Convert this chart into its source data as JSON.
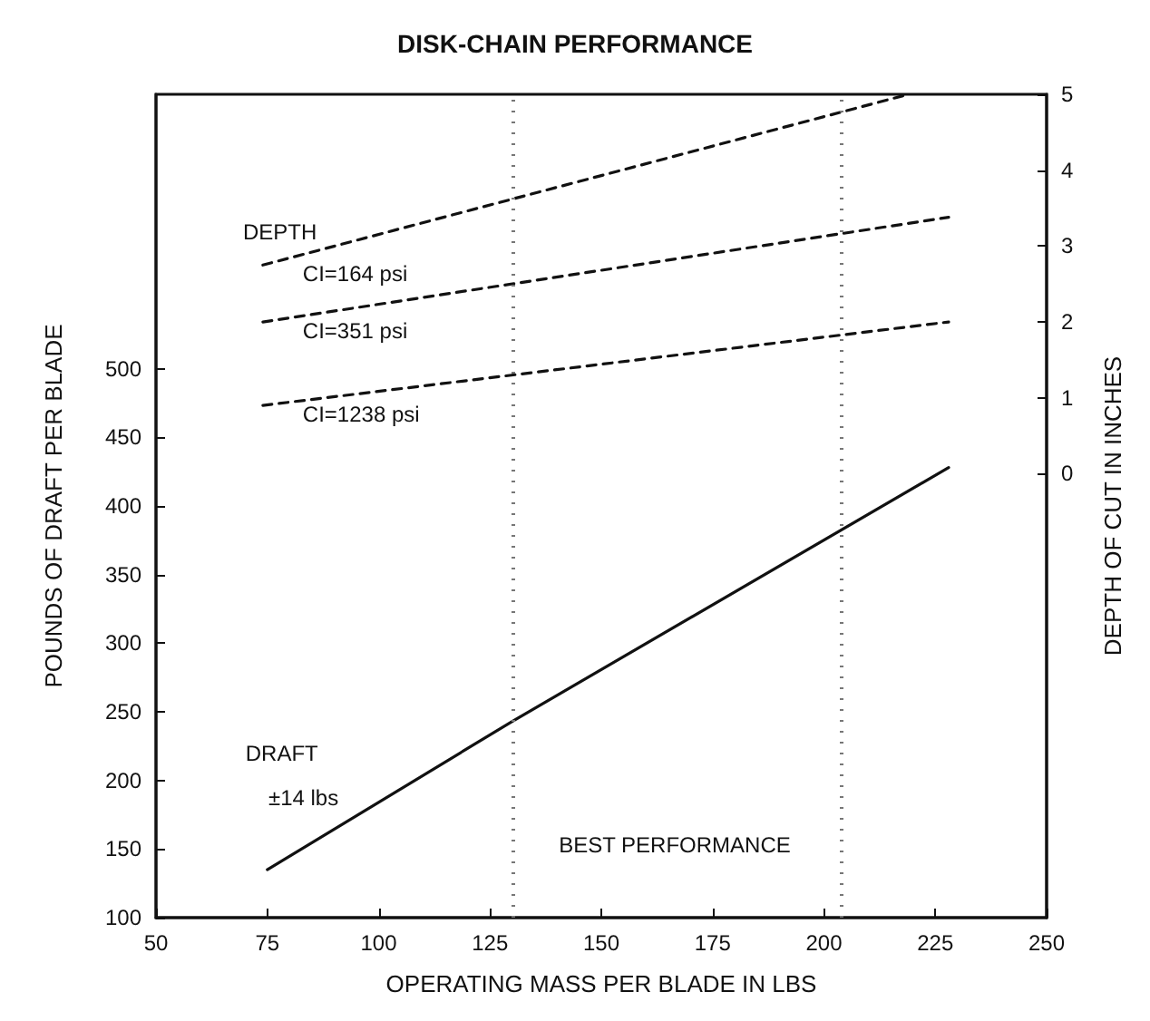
{
  "chart_data": {
    "type": "line",
    "title": "DISK-CHAIN PERFORMANCE",
    "xlabel": "OPERATING MASS PER BLADE IN LBS",
    "ylabel": "POUNDS OF DRAFT PER BLADE",
    "y2label": "DEPTH OF CUT IN INCHES",
    "xlim": [
      50,
      250
    ],
    "xticks": [
      50,
      75,
      100,
      125,
      150,
      175,
      200,
      225,
      250
    ],
    "ylim": [
      100,
      700
    ],
    "yticks": [
      100,
      150,
      200,
      250,
      300,
      350,
      400,
      450,
      500
    ],
    "y2lim": [
      -5.85,
      5
    ],
    "y2ticks": [
      0,
      1,
      2,
      3,
      4,
      5
    ],
    "grid": false,
    "legend": false,
    "marker": "none",
    "series": [
      {
        "name": "CI=164 psi",
        "color": "#111111",
        "axis": "y2",
        "line_style": "dashed",
        "x": [
          74,
          219
        ],
        "values": [
          2.75,
          5
        ]
      },
      {
        "name": "CI=351 psi",
        "color": "#111111",
        "axis": "y2",
        "line_style": "dashed",
        "x": [
          74,
          228
        ],
        "values": [
          2.0,
          3.38
        ]
      },
      {
        "name": "CI=1238 psi",
        "color": "#111111",
        "axis": "y2",
        "line_style": "dashed",
        "x": [
          74,
          228
        ],
        "values": [
          0.9,
          2.0
        ]
      },
      {
        "name": "DRAFT",
        "color": "#111111",
        "axis": "y",
        "line_style": "solid",
        "x": [
          75,
          130,
          228
        ],
        "values": [
          135,
          243,
          428
        ]
      }
    ],
    "ref_lines": [
      {
        "axis": "x",
        "value": 130,
        "color": "#777777",
        "line_style": "dotted"
      },
      {
        "axis": "x",
        "value": 204,
        "color": "#777777",
        "line_style": "dotted"
      }
    ],
    "annotations": [
      "DEPTH",
      "±14 lbs",
      "BEST PERFORMANCE"
    ]
  }
}
